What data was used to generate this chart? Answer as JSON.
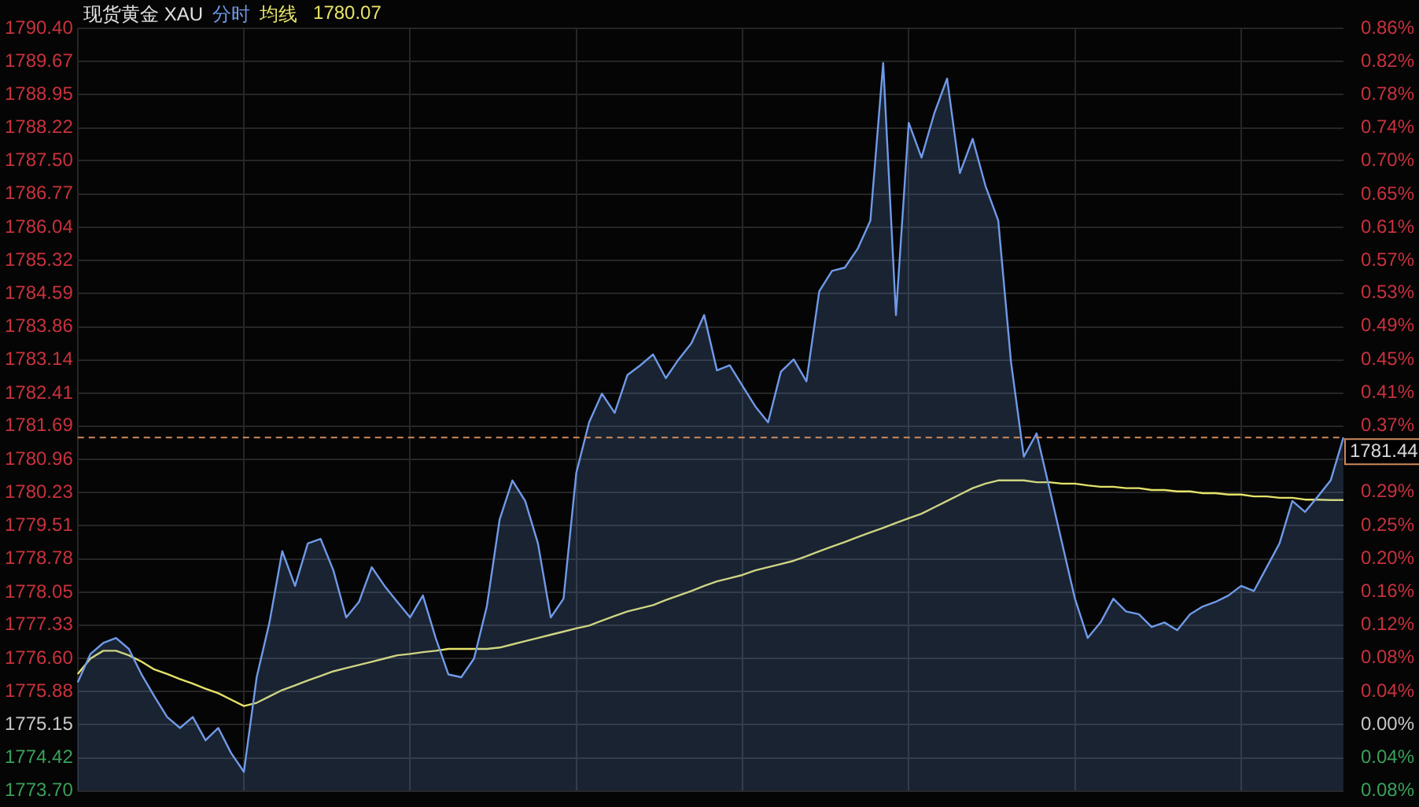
{
  "chart_data": {
    "type": "area",
    "title": "现货黄金 XAU",
    "annotations": [
      "1780.07"
    ],
    "legend": "top",
    "grid": true,
    "marker": "none",
    "categories": [
      null,
      null,
      null,
      null,
      null,
      null,
      null,
      null,
      null,
      null,
      null,
      null,
      null,
      null,
      null,
      null,
      null,
      null,
      null,
      null,
      null,
      null,
      null,
      null,
      null,
      null,
      null,
      null,
      null,
      null,
      null,
      null,
      null,
      null,
      null,
      null,
      null,
      null,
      null,
      null,
      null,
      null,
      null,
      null,
      null,
      null,
      null,
      null,
      null,
      null,
      null,
      null,
      null,
      null,
      null,
      null,
      null,
      null,
      null,
      null,
      null,
      null,
      null,
      null,
      null,
      null,
      null,
      null,
      null,
      null,
      null,
      null,
      null,
      null,
      null,
      null,
      null,
      null,
      null,
      null,
      null,
      null,
      null,
      null,
      null,
      null,
      null,
      null,
      null,
      null,
      null,
      null,
      null,
      null,
      null,
      null,
      null,
      null,
      null,
      null
    ],
    "ylim": [
      1773.7,
      1790.4
    ],
    "yticks": [
      {
        "value": 1790.4,
        "label": "1790.40"
      },
      1789.67,
      1788.95,
      1788.22,
      {
        "value": 1787.5,
        "label": "1787.50"
      },
      1786.77,
      1786.04,
      1785.32,
      1784.59,
      1783.86,
      1783.14,
      1782.41,
      1781.69,
      1780.96,
      1780.23,
      1779.51,
      1778.78,
      1778.05,
      1777.33,
      {
        "value": 1776.6,
        "label": "1776.60"
      },
      1775.88,
      1775.15,
      1774.42,
      {
        "value": 1773.7,
        "label": "1773.70"
      }
    ],
    "y2lim": [
      -0.082,
      0.86
    ],
    "y2ticks": [
      {
        "value": 0.86,
        "label": "0.86%"
      },
      {
        "value": 0.819,
        "label": "0.82%"
      },
      {
        "value": 0.778,
        "label": "0.78%"
      },
      {
        "value": 0.737,
        "label": "0.74%"
      },
      {
        "value": 0.696,
        "label": "0.70%"
      },
      {
        "value": 0.655,
        "label": "0.65%"
      },
      {
        "value": 0.614,
        "label": "0.61%"
      },
      {
        "value": 0.573,
        "label": "0.57%"
      },
      {
        "value": 0.533,
        "label": "0.53%"
      },
      {
        "value": 0.492,
        "label": "0.49%"
      },
      {
        "value": 0.451,
        "label": "0.45%"
      },
      {
        "value": 0.41,
        "label": "0.41%"
      },
      {
        "value": 0.369,
        "label": "0.37%"
      },
      {
        "value": 0.287,
        "label": "0.29%"
      },
      {
        "value": 0.246,
        "label": "0.25%"
      },
      {
        "value": 0.205,
        "label": "0.20%"
      },
      {
        "value": 0.164,
        "label": "0.16%"
      },
      {
        "value": 0.123,
        "label": "0.12%"
      },
      {
        "value": 0.082,
        "label": "0.08%"
      },
      {
        "value": 0.041,
        "label": "0.04%"
      },
      {
        "value": 0,
        "label": "0.00%"
      },
      {
        "value": -0.041,
        "label": "0.04%"
      },
      {
        "value": -0.082,
        "label": "0.08%"
      }
    ],
    "ref_lines": [
      {
        "axis": "y",
        "value": 1781.44,
        "label": "1781.44",
        "color": "#d08a5a",
        "line_style": "dashed"
      }
    ],
    "series": [
      {
        "name": "分时",
        "type": "area",
        "color": "#6f9ae8",
        "values": [
          1776.08,
          1776.7,
          1776.94,
          1777.05,
          1776.81,
          1776.25,
          1775.77,
          1775.32,
          1775.08,
          1775.32,
          1774.81,
          1775.08,
          1774.53,
          1774.12,
          1776.19,
          1777.39,
          1778.95,
          1778.19,
          1779.12,
          1779.22,
          1778.53,
          1777.5,
          1777.84,
          1778.6,
          1778.19,
          1777.84,
          1777.5,
          1777.98,
          1777.05,
          1776.25,
          1776.19,
          1776.6,
          1777.74,
          1779.64,
          1780.5,
          1780.05,
          1779.12,
          1777.5,
          1777.91,
          1780.67,
          1781.77,
          1782.4,
          1781.98,
          1782.81,
          1783.02,
          1783.26,
          1782.74,
          1783.15,
          1783.5,
          1784.12,
          1782.91,
          1783.02,
          1782.57,
          1782.12,
          1781.77,
          1782.88,
          1783.15,
          1782.67,
          1784.64,
          1785.09,
          1785.16,
          1785.57,
          1786.19,
          1789.64,
          1784.12,
          1788.33,
          1787.57,
          1788.54,
          1789.3,
          1787.23,
          1787.98,
          1786.95,
          1786.19,
          1783.09,
          1781.02,
          1781.53,
          1780.33,
          1779.12,
          1777.91,
          1777.05,
          1777.39,
          1777.91,
          1777.63,
          1777.57,
          1777.29,
          1777.39,
          1777.22,
          1777.57,
          1777.74,
          1777.84,
          1777.98,
          1778.19,
          1778.08,
          1778.6,
          1779.12,
          1780.05,
          1779.81,
          1780.15,
          1780.5,
          1781.44
        ]
      },
      {
        "name": "均线",
        "type": "line",
        "color": "#e6e36a",
        "values": [
          1776.26,
          1776.6,
          1776.77,
          1776.77,
          1776.67,
          1776.53,
          1776.36,
          1776.26,
          1776.15,
          1776.05,
          1775.94,
          1775.84,
          1775.7,
          1775.56,
          1775.63,
          1775.77,
          1775.91,
          1776.01,
          1776.12,
          1776.22,
          1776.32,
          1776.39,
          1776.46,
          1776.53,
          1776.6,
          1776.67,
          1776.7,
          1776.74,
          1776.77,
          1776.81,
          1776.81,
          1776.81,
          1776.81,
          1776.84,
          1776.91,
          1776.98,
          1777.05,
          1777.12,
          1777.19,
          1777.26,
          1777.32,
          1777.43,
          1777.53,
          1777.63,
          1777.7,
          1777.77,
          1777.88,
          1777.98,
          1778.08,
          1778.19,
          1778.29,
          1778.36,
          1778.43,
          1778.53,
          1778.6,
          1778.67,
          1778.74,
          1778.84,
          1778.95,
          1779.05,
          1779.15,
          1779.26,
          1779.36,
          1779.46,
          1779.57,
          1779.67,
          1779.77,
          1779.91,
          1780.05,
          1780.19,
          1780.33,
          1780.43,
          1780.5,
          1780.5,
          1780.5,
          1780.46,
          1780.46,
          1780.43,
          1780.43,
          1780.39,
          1780.36,
          1780.36,
          1780.33,
          1780.33,
          1780.29,
          1780.29,
          1780.26,
          1780.26,
          1780.22,
          1780.22,
          1780.19,
          1780.19,
          1780.15,
          1780.15,
          1780.12,
          1780.12,
          1780.08,
          1780.08,
          1780.07,
          1780.07
        ]
      }
    ]
  }
}
